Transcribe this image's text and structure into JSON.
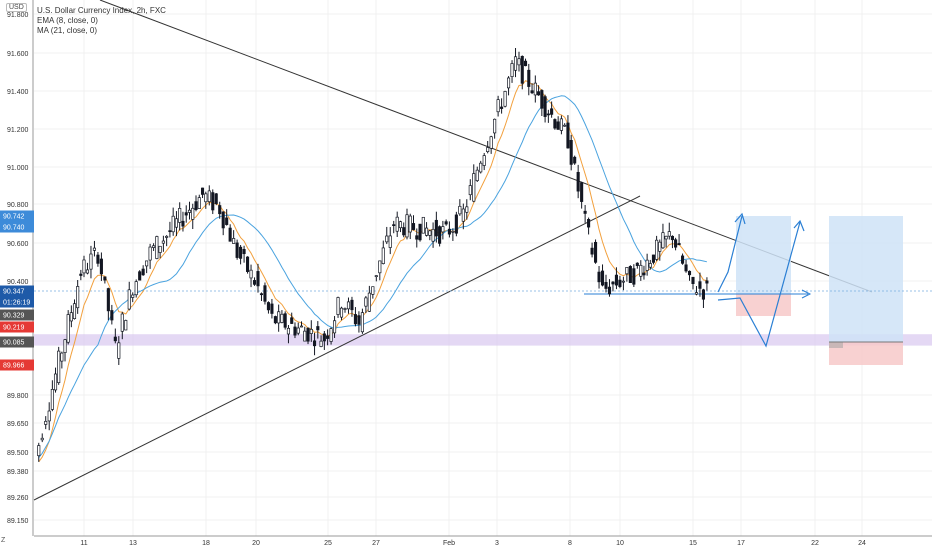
{
  "chart_data": {
    "type": "candlestick",
    "title": "U.S. Dollar Currency Index, 2h, FXC",
    "symbol_button": "USD",
    "indicators": [
      {
        "label": "EMA (8, close, 0)",
        "color": "#f2a03d"
      },
      {
        "label": "MA (21, close, 0)",
        "color": "#4aa3df"
      }
    ],
    "y_ticks": [
      {
        "label": "91.800",
        "value": 91.8
      },
      {
        "label": "91.600",
        "value": 91.6
      },
      {
        "label": "91.400",
        "value": 91.4
      },
      {
        "label": "91.200",
        "value": 91.2
      },
      {
        "label": "91.000",
        "value": 91.0
      },
      {
        "label": "90.800",
        "value": 90.8
      },
      {
        "label": "90.600",
        "value": 90.6
      },
      {
        "label": "90.400",
        "value": 90.4
      },
      {
        "label": "89.800",
        "value": 89.8
      },
      {
        "label": "89.650",
        "value": 89.65
      },
      {
        "label": "89.500",
        "value": 89.5
      },
      {
        "label": "89.380",
        "value": 89.38
      },
      {
        "label": "89.260",
        "value": 89.26
      },
      {
        "label": "89.150",
        "value": 89.15
      }
    ],
    "x_ticks": [
      "11",
      "13",
      "18",
      "20",
      "25",
      "27",
      "Feb",
      "3",
      "8",
      "10",
      "15",
      "17",
      "22",
      "24"
    ],
    "price_tags": [
      {
        "label": "90.742",
        "value": 90.742,
        "color": "#3d8bd9"
      },
      {
        "label": "90.740",
        "value": 90.74,
        "color": "#3d8bd9"
      },
      {
        "label": "90.347",
        "value": 90.347,
        "color": "#1e5aa8"
      },
      {
        "label": "01:26:19",
        "value": 90.29,
        "color": "#1e5aa8"
      },
      {
        "label": "90.329",
        "value": 90.329,
        "color": "#555555"
      },
      {
        "label": "90.219",
        "value": 90.219,
        "color": "#e53935"
      },
      {
        "label": "90.085",
        "value": 90.085,
        "color": "#555555"
      },
      {
        "label": "89.966",
        "value": 89.966,
        "color": "#e53935"
      }
    ],
    "close_path": [
      [
        "Jan 8",
        89.31
      ],
      [
        "Jan 9",
        89.7
      ],
      [
        "Jan 11",
        90.45
      ],
      [
        "Jan 12",
        90.55
      ],
      [
        "Jan 13",
        90.05
      ],
      [
        "Jan 14",
        90.38
      ],
      [
        "Jan 15",
        90.55
      ],
      [
        "Jan 18",
        90.85
      ],
      [
        "Jan 19",
        90.78
      ],
      [
        "Jan 20",
        90.55
      ],
      [
        "Jan 21",
        90.4
      ],
      [
        "Jan 22",
        90.2
      ],
      [
        "Jan 25",
        90.1
      ],
      [
        "Jan 26",
        90.3
      ],
      [
        "Jan 27",
        90.18
      ],
      [
        "Jan 28",
        90.45
      ],
      [
        "Jan 29",
        90.7
      ],
      [
        "Feb 1",
        90.65
      ],
      [
        "Feb 2",
        90.75
      ],
      [
        "Feb 3",
        91.05
      ],
      [
        "Feb 4",
        91.3
      ],
      [
        "Feb 5",
        91.55
      ],
      [
        "Feb 8",
        91.15
      ],
      [
        "Feb 9",
        90.7
      ],
      [
        "Feb 10",
        90.35
      ],
      [
        "Feb 11",
        90.4
      ],
      [
        "Feb 12",
        90.45
      ],
      [
        "Feb 14",
        90.65
      ],
      [
        "Feb 15",
        90.38
      ],
      [
        "Feb 16",
        90.35
      ]
    ],
    "support_zone": {
      "from": 90.06,
      "to": 90.12
    },
    "grid": true
  }
}
